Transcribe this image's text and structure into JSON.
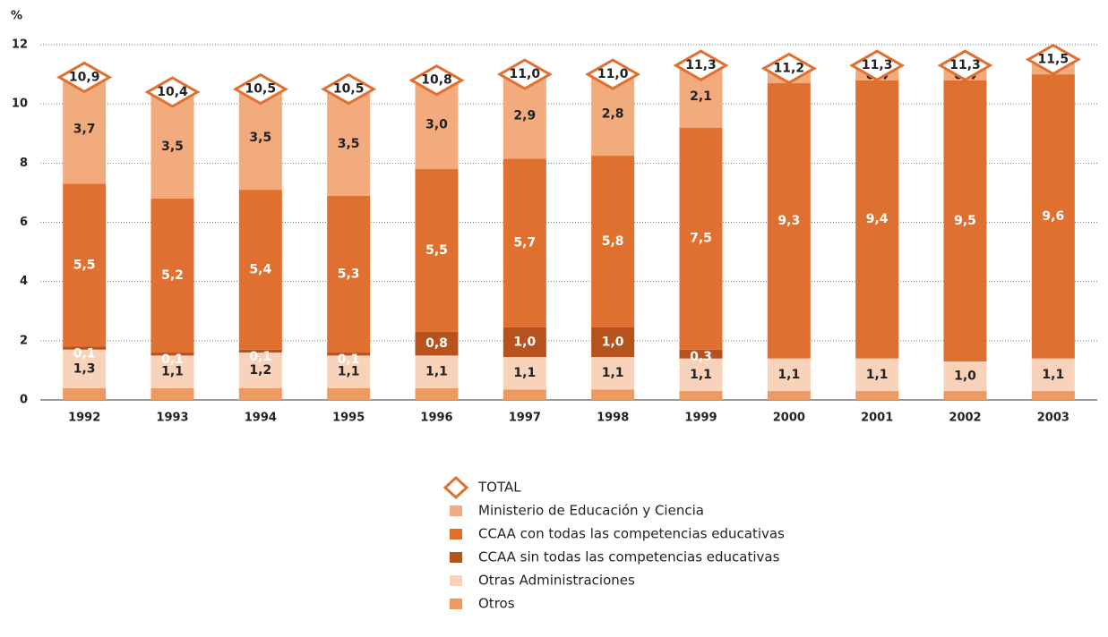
{
  "chart_data": {
    "type": "stacked-bar",
    "ylabel": "%",
    "categories": [
      "1992",
      "1993",
      "1994",
      "1995",
      "1996",
      "1997",
      "1998",
      "1999",
      "2000",
      "2001",
      "2002",
      "2003"
    ],
    "ylim": [
      0,
      12
    ],
    "yticks": [
      0,
      2,
      4,
      6,
      8,
      10,
      12
    ],
    "grid": true,
    "series": [
      {
        "name": "Otros",
        "color": "#ec9a62",
        "values": [
          0.4,
          0.4,
          0.4,
          0.4,
          0.4,
          0.35,
          0.35,
          0.3,
          0.3,
          0.3,
          0.3,
          0.3
        ]
      },
      {
        "name": "Otras Administraciones",
        "color": "#f8d3ba",
        "values": [
          1.3,
          1.1,
          1.2,
          1.1,
          1.1,
          1.1,
          1.1,
          1.1,
          1.1,
          1.1,
          1.0,
          1.1
        ],
        "value_labels": [
          "1,3",
          "1,1",
          "1,2",
          "1,1",
          "1,1",
          "1,1",
          "1,1",
          "1,1",
          "1,1",
          "1,1",
          "1,0",
          "1,1"
        ]
      },
      {
        "name": "CCAA sin todas las competencias educativas",
        "color": "#b5521e",
        "values": [
          0.1,
          0.1,
          0.1,
          0.1,
          0.8,
          1.0,
          1.0,
          0.3,
          null,
          null,
          null,
          null
        ],
        "value_labels": [
          "0,1",
          "0,1",
          "0,1",
          "0,1",
          "0,8",
          "1,0",
          "1,0",
          "0,3",
          null,
          null,
          null,
          null
        ]
      },
      {
        "name": "CCAA con todas las competencias educativas",
        "color": "#e07030",
        "values": [
          5.5,
          5.2,
          5.4,
          5.3,
          5.5,
          5.7,
          5.8,
          7.5,
          9.3,
          9.4,
          9.5,
          9.6
        ],
        "value_labels": [
          "5,5",
          "5,2",
          "5,4",
          "5,3",
          "5,5",
          "5,7",
          "5,8",
          "7,5",
          "9,3",
          "9,4",
          "9,5",
          "9,6"
        ]
      },
      {
        "name": "Ministerio de Educación y Ciencia",
        "color": "#f2ab7d",
        "values": [
          3.7,
          3.5,
          3.5,
          3.5,
          3.0,
          2.9,
          2.8,
          2.1,
          0.5,
          0.4,
          0.4,
          0.5
        ],
        "value_labels": [
          "3,7",
          "3,5",
          "3,5",
          "3,5",
          "3,0",
          "2,9",
          "2,8",
          "2,1",
          "0,5",
          "0,4",
          "0,4",
          "0,5"
        ]
      }
    ],
    "total": {
      "name": "TOTAL",
      "color": "#e07030",
      "values": [
        10.9,
        10.4,
        10.5,
        10.5,
        10.8,
        11.0,
        11.0,
        11.3,
        11.2,
        11.3,
        11.3,
        11.5
      ],
      "value_labels": [
        "10,9",
        "10,4",
        "10,5",
        "10,5",
        "10,8",
        "11,0",
        "11,0",
        "11,3",
        "11,2",
        "11,3",
        "11,3",
        "11,5"
      ]
    }
  }
}
